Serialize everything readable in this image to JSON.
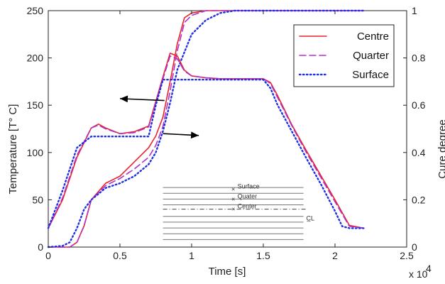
{
  "chart_data": {
    "type": "line",
    "xlabel": "Time [s]",
    "x_multiplier": "x 10",
    "x_multiplier_exp": "4",
    "ylabel_left": "Temperature [T° C]",
    "ylabel_right": "Cure degree",
    "xlim": [
      0,
      2.5
    ],
    "ylim_left": [
      0,
      250
    ],
    "ylim_right": [
      0,
      1
    ],
    "x_ticks": [
      "0",
      "0.5",
      "1",
      "1.5",
      "2",
      "2.5"
    ],
    "y_left_ticks": [
      "0",
      "50",
      "100",
      "150",
      "200",
      "250"
    ],
    "y_right_ticks": [
      "0",
      "0.2",
      "0.4",
      "0.6",
      "0.8",
      "1"
    ],
    "legend_position": "top-right",
    "colors": {
      "centre": "#e8232b",
      "quarter": "#b030c8",
      "surface": "#1f2fe6"
    },
    "temperature_series": [
      {
        "name": "Centre",
        "axis": "left",
        "x": [
          0,
          0.1,
          0.2,
          0.3,
          0.35,
          0.4,
          0.5,
          0.6,
          0.7,
          0.8,
          0.85,
          0.9,
          0.95,
          1.0,
          1.1,
          1.2,
          1.3,
          1.4,
          1.5,
          1.55,
          1.6,
          1.7,
          1.8,
          1.9,
          2.0,
          2.1,
          2.2
        ],
        "y": [
          20,
          50,
          95,
          126,
          130,
          126,
          120,
          122,
          128,
          180,
          205,
          202,
          187,
          181,
          179,
          178,
          178,
          178,
          178,
          174,
          160,
          129,
          102,
          76,
          50,
          23,
          20
        ]
      },
      {
        "name": "Quarter",
        "axis": "left",
        "x": [
          0,
          0.1,
          0.2,
          0.3,
          0.35,
          0.4,
          0.5,
          0.6,
          0.7,
          0.8,
          0.85,
          0.9,
          0.95,
          1.0,
          1.1,
          1.2,
          1.3,
          1.4,
          1.5,
          1.55,
          1.6,
          1.7,
          1.8,
          1.9,
          2.0,
          2.1,
          2.2
        ],
        "y": [
          20,
          52,
          97,
          126,
          129,
          125,
          120,
          121,
          127,
          178,
          202,
          199,
          186,
          181,
          179,
          178,
          178,
          178,
          178,
          173,
          158,
          128,
          100,
          74,
          48,
          22,
          20
        ]
      },
      {
        "name": "Surface",
        "axis": "left",
        "x": [
          0,
          0.1,
          0.2,
          0.3,
          0.7,
          0.75,
          0.8,
          1.5,
          1.55,
          1.6,
          1.7,
          1.8,
          1.9,
          2.0,
          2.05,
          2.1,
          2.2
        ],
        "y": [
          20,
          60,
          105,
          117,
          117,
          150,
          177,
          177,
          168,
          150,
          122,
          94,
          67,
          38,
          22,
          20,
          20
        ]
      }
    ],
    "cure_series": [
      {
        "name": "Centre",
        "axis": "right",
        "x": [
          0,
          0.15,
          0.2,
          0.25,
          0.3,
          0.4,
          0.5,
          0.6,
          0.7,
          0.75,
          0.8,
          0.85,
          0.9,
          0.95,
          1.0,
          1.1,
          1.3,
          1.5,
          2.2
        ],
        "y": [
          0,
          0,
          0.02,
          0.09,
          0.2,
          0.27,
          0.3,
          0.36,
          0.42,
          0.47,
          0.55,
          0.7,
          0.86,
          0.97,
          0.99,
          1.0,
          1.0,
          1.0,
          1.0
        ]
      },
      {
        "name": "Quarter",
        "axis": "right",
        "x": [
          0,
          0.15,
          0.2,
          0.25,
          0.3,
          0.4,
          0.5,
          0.6,
          0.7,
          0.75,
          0.8,
          0.85,
          0.9,
          0.95,
          1.0,
          1.1,
          1.3,
          1.5,
          2.2
        ],
        "y": [
          0,
          0,
          0.02,
          0.09,
          0.2,
          0.26,
          0.29,
          0.33,
          0.38,
          0.43,
          0.51,
          0.66,
          0.83,
          0.95,
          0.98,
          1.0,
          1.0,
          1.0,
          1.0
        ]
      },
      {
        "name": "Surface",
        "axis": "right",
        "x": [
          0,
          0.1,
          0.15,
          0.2,
          0.25,
          0.3,
          0.4,
          0.5,
          0.6,
          0.7,
          0.75,
          0.8,
          0.85,
          0.9,
          1.0,
          1.1,
          1.2,
          1.3,
          1.5,
          2.2
        ],
        "y": [
          0,
          0.005,
          0.02,
          0.08,
          0.16,
          0.2,
          0.25,
          0.27,
          0.3,
          0.35,
          0.4,
          0.49,
          0.61,
          0.75,
          0.9,
          0.96,
          0.99,
          1.0,
          1.0,
          1.0
        ]
      }
    ],
    "annotations": [
      {
        "kind": "arrow",
        "direction": "left",
        "from": [
          0.81,
          155
        ],
        "to": [
          0.5,
          157
        ]
      },
      {
        "kind": "arrow",
        "direction": "right",
        "from": [
          0.8,
          120
        ],
        "to": [
          1.05,
          118
        ]
      }
    ],
    "inset": {
      "labels": [
        "Surface",
        "Quater",
        "Center"
      ],
      "centerline_symbol": "C̲L",
      "x_range": [
        0.8,
        1.78
      ],
      "y_range": [
        8,
        63
      ]
    }
  }
}
